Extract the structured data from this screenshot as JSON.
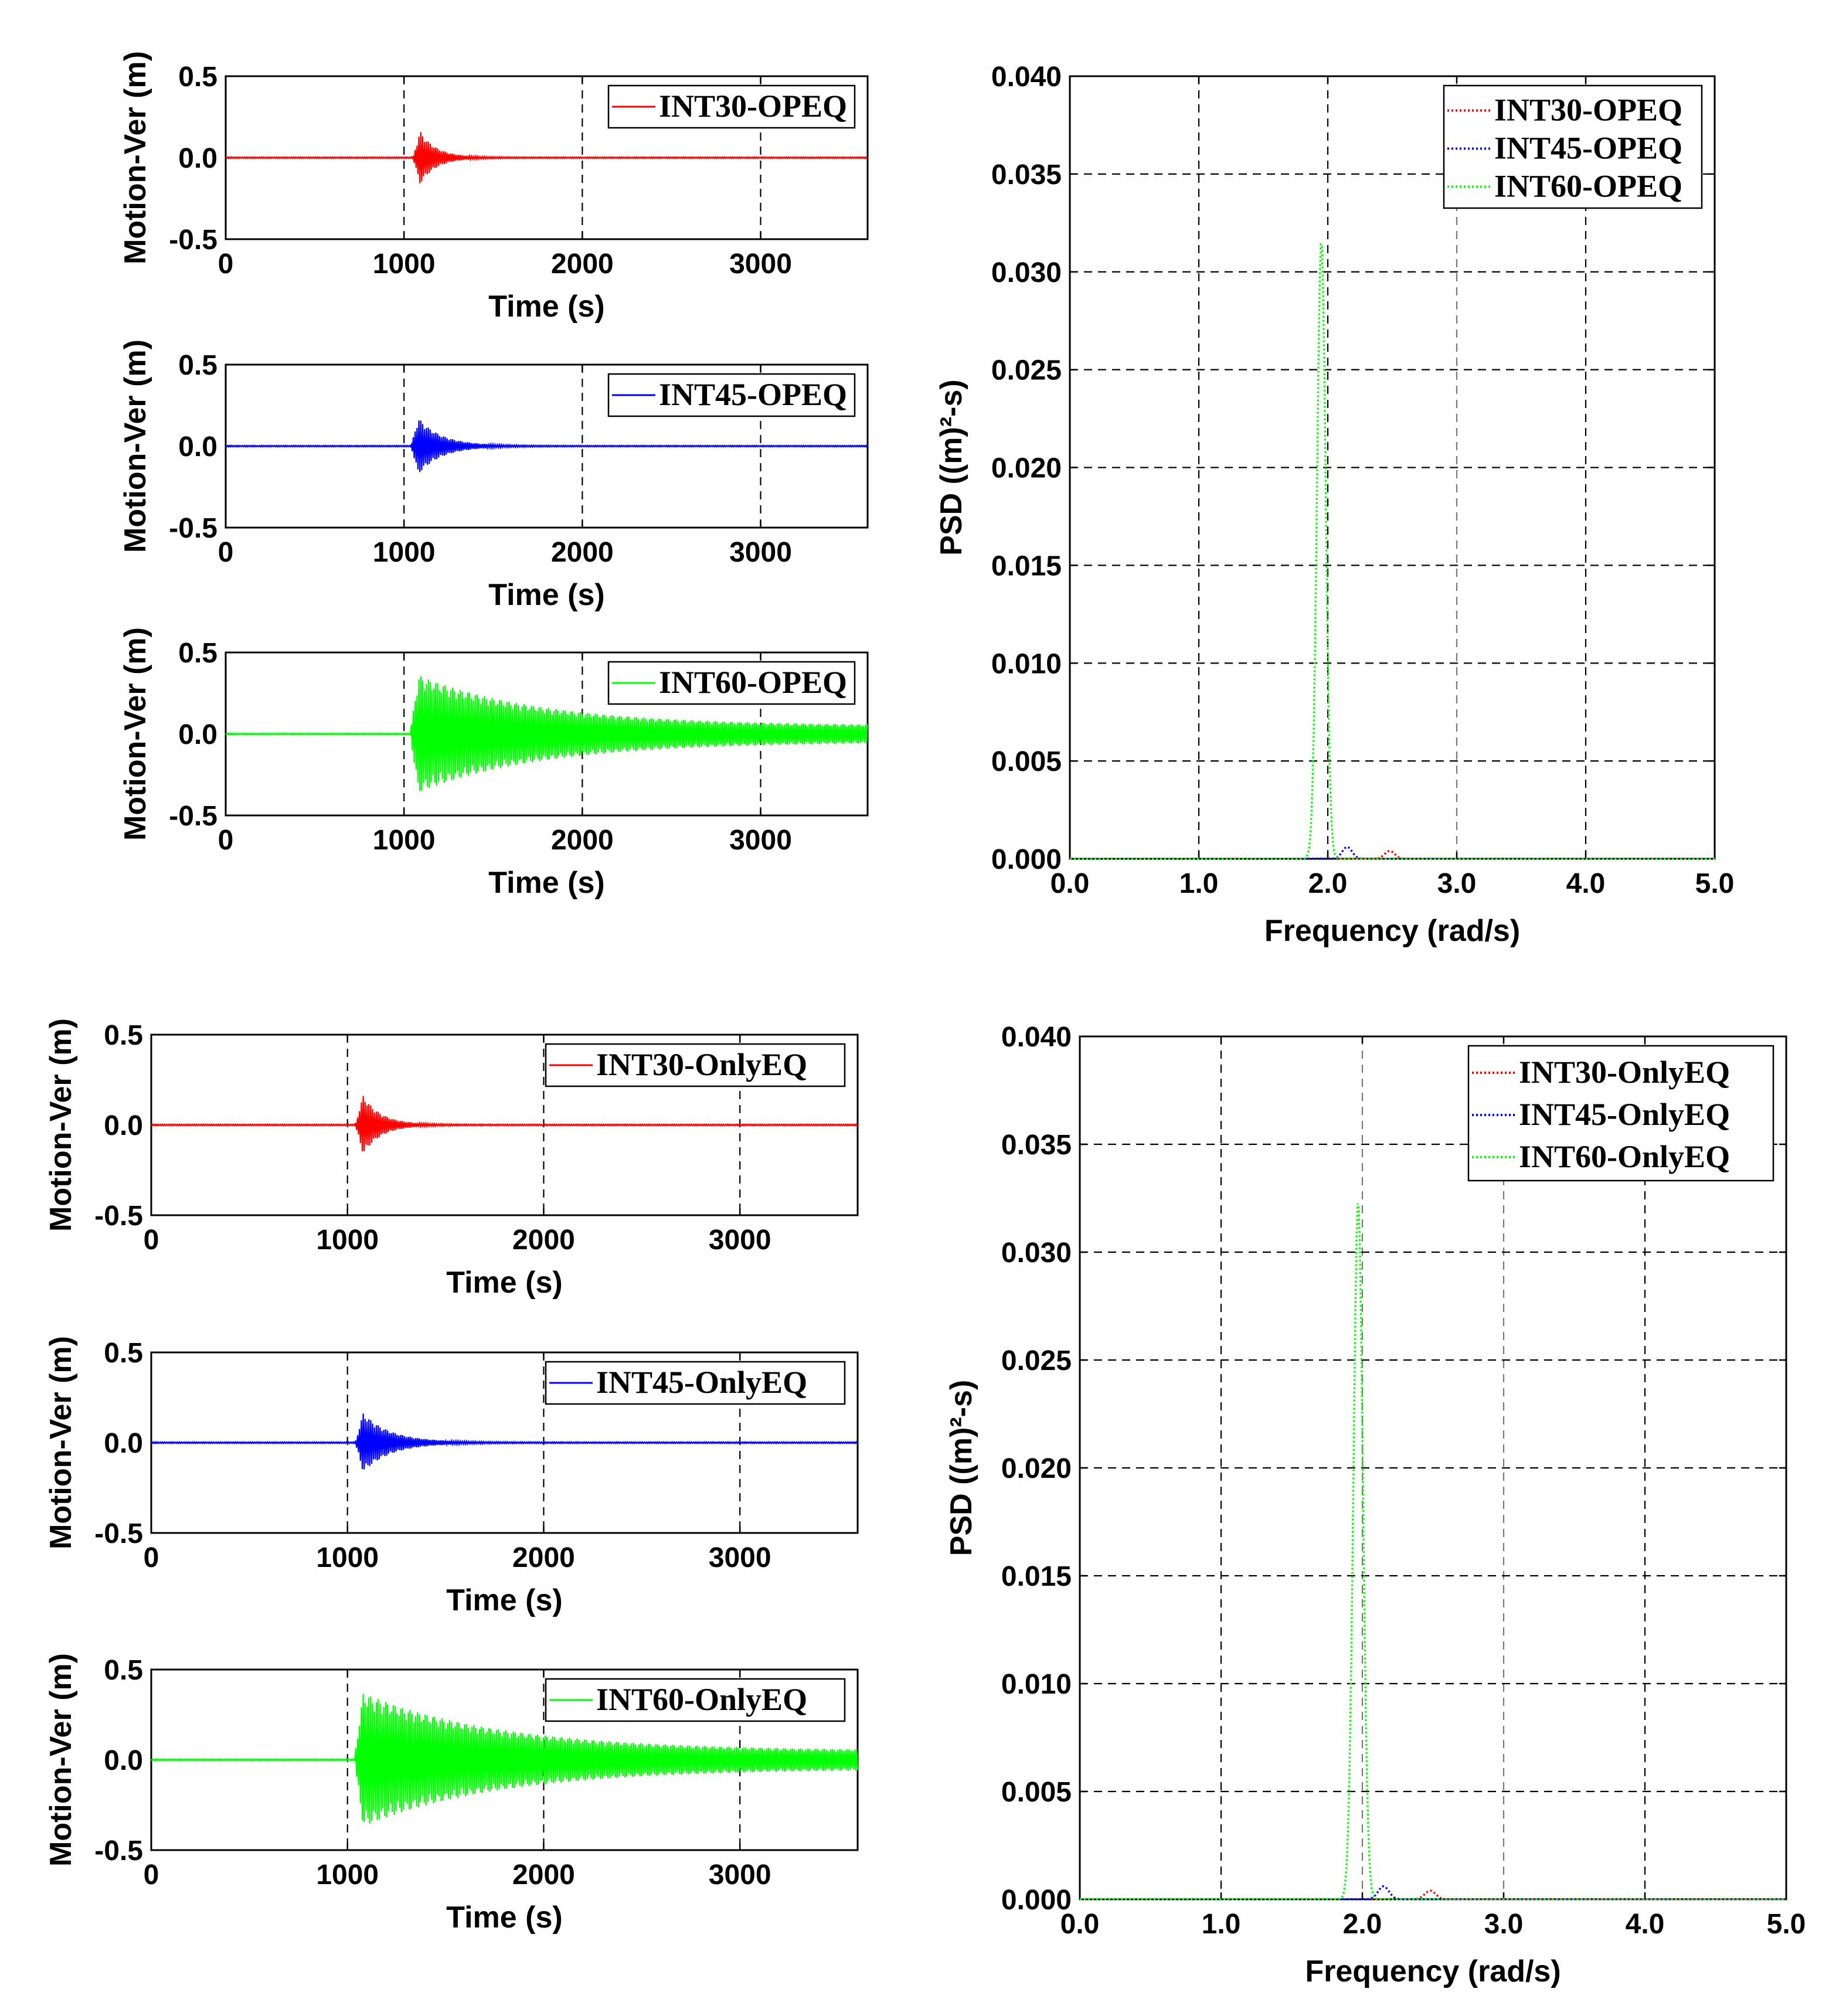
{
  "colors": {
    "int30": "#ff0000",
    "int45": "#0000ff",
    "int60": "#00ff00"
  },
  "chart_data": [
    {
      "id": "ts_opeq_30",
      "type": "line",
      "series": [
        {
          "name": "INT30-OPEQ",
          "color": "#ff0000",
          "onset": 1050,
          "peak": 0.16,
          "decay": 90,
          "residual": 0.004
        }
      ],
      "xlabel": "Time (s)",
      "ylabel": "Motion-Ver (m)",
      "xlim": [
        0,
        3600
      ],
      "ylim": [
        -0.5,
        0.5
      ],
      "xticks": [
        0,
        1000,
        2000,
        3000
      ],
      "xtick_labels": [
        "0",
        "1000",
        "2000",
        "3000"
      ],
      "yticks": [
        -0.5,
        0,
        0.5
      ],
      "ytick_labels": [
        "-0.5",
        "0.0",
        "0.5"
      ],
      "legend": "top-right"
    },
    {
      "id": "ts_opeq_45",
      "type": "line",
      "series": [
        {
          "name": "INT45-OPEQ",
          "color": "#0000ff",
          "onset": 1040,
          "peak": 0.17,
          "decay": 130,
          "residual": 0.004
        }
      ],
      "xlabel": "Time (s)",
      "ylabel": "Motion-Ver (m)",
      "xlim": [
        0,
        3600
      ],
      "ylim": [
        -0.5,
        0.5
      ],
      "xticks": [
        0,
        1000,
        2000,
        3000
      ],
      "xtick_labels": [
        "0",
        "1000",
        "2000",
        "3000"
      ],
      "yticks": [
        -0.5,
        0,
        0.5
      ],
      "ytick_labels": [
        "-0.5",
        "0.0",
        "0.5"
      ],
      "legend": "top-right"
    },
    {
      "id": "ts_opeq_60",
      "type": "line",
      "series": [
        {
          "name": "INT60-OPEQ",
          "color": "#00ff00",
          "onset": 1040,
          "peak": 0.31,
          "decay": 700,
          "residual": 0.05
        }
      ],
      "xlabel": "Time (s)",
      "ylabel": "Motion-Ver (m)",
      "xlim": [
        0,
        3600
      ],
      "ylim": [
        -0.5,
        0.5
      ],
      "xticks": [
        0,
        1000,
        2000,
        3000
      ],
      "xtick_labels": [
        "0",
        "1000",
        "2000",
        "3000"
      ],
      "yticks": [
        -0.5,
        0,
        0.5
      ],
      "ytick_labels": [
        "-0.5",
        "0.0",
        "0.5"
      ],
      "legend": "top-right"
    },
    {
      "id": "psd_opeq",
      "type": "line",
      "series": [
        {
          "name": "INT30-OPEQ",
          "color": "#ff0000",
          "peak_freq": 2.48,
          "peak": 0.0004,
          "width": 0.08
        },
        {
          "name": "INT45-OPEQ",
          "color": "#0000ff",
          "peak_freq": 2.15,
          "peak": 0.0006,
          "width": 0.08
        },
        {
          "name": "INT60-OPEQ",
          "color": "#00ff00",
          "peak_freq": 1.95,
          "peak": 0.0317,
          "width": 0.07
        }
      ],
      "xlabel": "Frequency (rad/s)",
      "ylabel": "PSD ((m)²-s)",
      "xlim": [
        0,
        5
      ],
      "ylim": [
        0,
        0.04
      ],
      "xticks": [
        0,
        1,
        2,
        3,
        4,
        5
      ],
      "xtick_labels": [
        "0.0",
        "1.0",
        "2.0",
        "3.0",
        "4.0",
        "5.0"
      ],
      "yticks": [
        0,
        0.005,
        0.01,
        0.015,
        0.02,
        0.025,
        0.03,
        0.035,
        0.04
      ],
      "ytick_labels": [
        "0.000",
        "0.005",
        "0.010",
        "0.015",
        "0.020",
        "0.025",
        "0.030",
        "0.035",
        "0.040"
      ],
      "legend": "top-right"
    },
    {
      "id": "ts_only_30",
      "type": "line",
      "series": [
        {
          "name": "INT30-OnlyEQ",
          "color": "#ff0000",
          "onset": 1040,
          "peak": 0.16,
          "decay": 90,
          "residual": 0.004
        }
      ],
      "xlabel": "Time (s)",
      "ylabel": "Motion-Ver (m)",
      "xlim": [
        0,
        3600
      ],
      "ylim": [
        -0.5,
        0.5
      ],
      "xticks": [
        0,
        1000,
        2000,
        3000
      ],
      "xtick_labels": [
        "0",
        "1000",
        "2000",
        "3000"
      ],
      "yticks": [
        -0.5,
        0,
        0.5
      ],
      "ytick_labels": [
        "-0.5",
        "0.0",
        "0.5"
      ],
      "legend": "top-right"
    },
    {
      "id": "ts_only_45",
      "type": "line",
      "series": [
        {
          "name": "INT45-OnlyEQ",
          "color": "#0000ff",
          "onset": 1040,
          "peak": 0.16,
          "decay": 140,
          "residual": 0.004
        }
      ],
      "xlabel": "Time (s)",
      "ylabel": "Motion-Ver (m)",
      "xlim": [
        0,
        3600
      ],
      "ylim": [
        -0.5,
        0.5
      ],
      "xticks": [
        0,
        1000,
        2000,
        3000
      ],
      "xtick_labels": [
        "0",
        "1000",
        "2000",
        "3000"
      ],
      "yticks": [
        -0.5,
        0,
        0.5
      ],
      "ytick_labels": [
        "-0.5",
        "0.0",
        "0.5"
      ],
      "legend": "top-right"
    },
    {
      "id": "ts_only_60",
      "type": "line",
      "series": [
        {
          "name": "INT60-OnlyEQ",
          "color": "#00ff00",
          "onset": 1040,
          "peak": 0.32,
          "decay": 700,
          "residual": 0.05
        }
      ],
      "xlabel": "Time (s)",
      "ylabel": "Motion-Ver (m)",
      "xlim": [
        0,
        3600
      ],
      "ylim": [
        -0.5,
        0.5
      ],
      "xticks": [
        0,
        1000,
        2000,
        3000
      ],
      "xtick_labels": [
        "0",
        "1000",
        "2000",
        "3000"
      ],
      "yticks": [
        -0.5,
        0,
        0.5
      ],
      "ytick_labels": [
        "-0.5",
        "0.0",
        "0.5"
      ],
      "legend": "top-right"
    },
    {
      "id": "psd_only",
      "type": "line",
      "series": [
        {
          "name": "INT30-OnlyEQ",
          "color": "#ff0000",
          "peak_freq": 2.48,
          "peak": 0.0004,
          "width": 0.08
        },
        {
          "name": "INT45-OnlyEQ",
          "color": "#0000ff",
          "peak_freq": 2.15,
          "peak": 0.0006,
          "width": 0.08
        },
        {
          "name": "INT60-OnlyEQ",
          "color": "#00ff00",
          "peak_freq": 1.97,
          "peak": 0.0324,
          "width": 0.07
        }
      ],
      "xlabel": "Frequency (rad/s)",
      "ylabel": "PSD ((m)²-s)",
      "xlim": [
        0,
        5
      ],
      "ylim": [
        0,
        0.04
      ],
      "xticks": [
        0,
        1,
        2,
        3,
        4,
        5
      ],
      "xtick_labels": [
        "0.0",
        "1.0",
        "2.0",
        "3.0",
        "4.0",
        "5.0"
      ],
      "yticks": [
        0,
        0.005,
        0.01,
        0.015,
        0.02,
        0.025,
        0.03,
        0.035,
        0.04
      ],
      "ytick_labels": [
        "0.000",
        "0.005",
        "0.010",
        "0.015",
        "0.020",
        "0.025",
        "0.030",
        "0.035",
        "0.040"
      ],
      "legend": "top-right"
    }
  ]
}
